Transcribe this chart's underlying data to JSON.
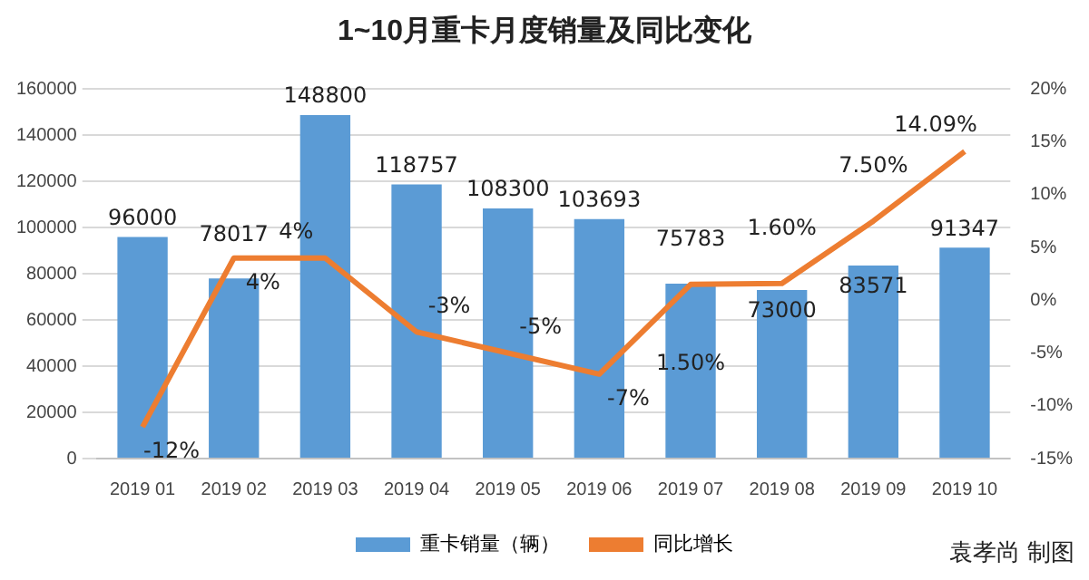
{
  "chart_data": {
    "type": "bar",
    "title": "1~10月重卡月度销量及同比变化",
    "categories": [
      "2019 01",
      "2019 02",
      "2019 03",
      "2019 04",
      "2019 05",
      "2019 06",
      "2019 07",
      "2019 08",
      "2019 09",
      "2019 10"
    ],
    "series": [
      {
        "name": "重卡销量（辆）",
        "color": "#5b9bd5",
        "values": [
          96000,
          78017,
          148800,
          118757,
          108300,
          103693,
          75783,
          73000,
          83571,
          91347
        ],
        "value_labels": [
          "96000",
          "78017",
          "148800",
          "118757",
          "108300",
          "103693",
          "75783",
          "73000",
          "83571",
          "91347"
        ]
      },
      {
        "name": "同比增长",
        "type": "line",
        "axis": "y2",
        "color": "#ed7d31",
        "values": [
          -12,
          4,
          4,
          -3,
          -5,
          -7,
          1.5,
          1.6,
          7.5,
          14.09
        ],
        "value_labels": [
          "-12%",
          "4%",
          "4%",
          "-3%",
          "-5%",
          "-7%",
          "1.50%",
          "1.60%",
          "7.50%",
          "14.09%"
        ]
      }
    ],
    "ylim": [
      0,
      160000
    ],
    "yticks": [
      0,
      20000,
      40000,
      60000,
      80000,
      100000,
      120000,
      140000,
      160000
    ],
    "y2lim": [
      -15,
      20
    ],
    "y2ticks": [
      {
        "value": -15,
        "label": "-15%"
      },
      {
        "value": -10,
        "label": "-10%"
      },
      {
        "value": -5,
        "label": "-5%"
      },
      {
        "value": 0,
        "label": "0%"
      },
      {
        "value": 5,
        "label": "5%"
      },
      {
        "value": 10,
        "label": "10%"
      },
      {
        "value": 15,
        "label": "15%"
      },
      {
        "value": 20,
        "label": "20%"
      }
    ],
    "grid": "y",
    "legend": "bottom",
    "marker": "none",
    "annotations": [
      "袁孝尚 制图"
    ]
  }
}
